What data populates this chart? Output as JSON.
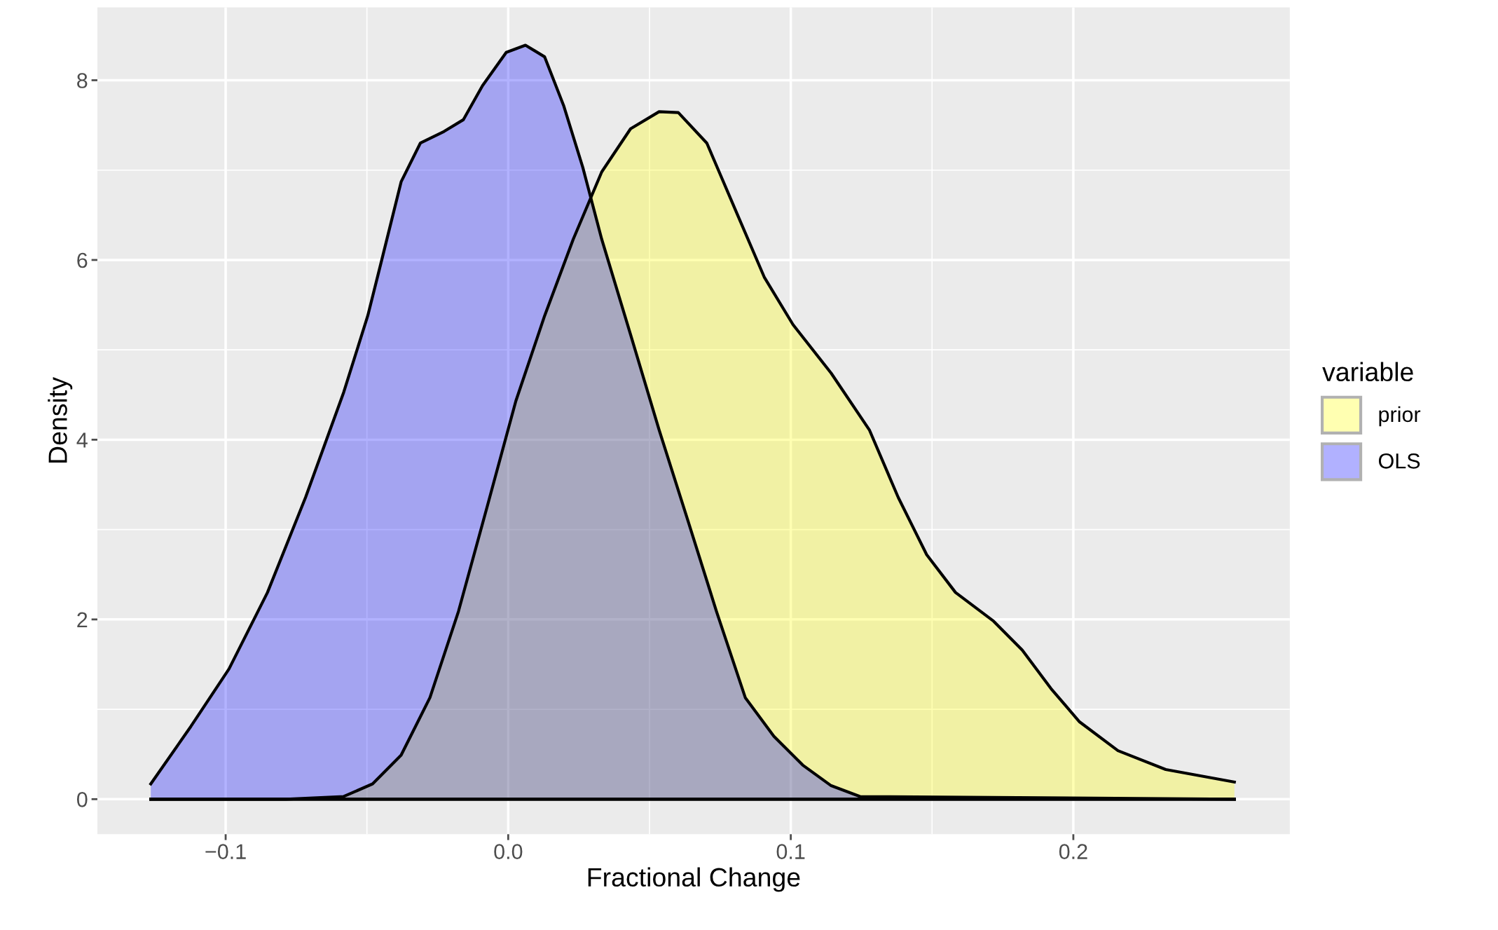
{
  "chart_data": {
    "type": "area",
    "xlabel": "Fractional Change",
    "ylabel": "Density",
    "legend_title": "variable",
    "legend": "right",
    "grid": true,
    "line_style": "solid",
    "xlim": [
      -0.1454,
      0.2766
    ],
    "ylim": [
      -0.39,
      8.81
    ],
    "xticks": [
      {
        "value": -0.1,
        "label": "−0.1"
      },
      {
        "value": 0.0,
        "label": "0.0"
      },
      {
        "value": 0.1,
        "label": "0.1"
      },
      {
        "value": 0.2,
        "label": "0.2"
      }
    ],
    "yticks": [
      0,
      2,
      4,
      6,
      8
    ],
    "series": [
      {
        "name": "prior",
        "color": "#ffff00",
        "x": [
          -0.1265,
          -0.0785,
          -0.0582,
          -0.048,
          -0.0379,
          -0.0277,
          -0.0176,
          -0.0074,
          0.0027,
          0.0129,
          0.023,
          0.0331,
          0.0433,
          0.0534,
          0.0602,
          0.0703,
          0.0805,
          0.0906,
          0.1008,
          0.1143,
          0.1278,
          0.138,
          0.1481,
          0.1583,
          0.1718,
          0.1819,
          0.1921,
          0.2022,
          0.2158,
          0.2327,
          0.257
        ],
        "values": [
          0,
          0,
          0.03,
          0.17,
          0.49,
          1.13,
          2.09,
          3.26,
          4.43,
          5.38,
          6.23,
          6.98,
          7.46,
          7.65,
          7.64,
          7.3,
          6.55,
          5.81,
          5.28,
          4.74,
          4.11,
          3.36,
          2.72,
          2.3,
          1.98,
          1.66,
          1.23,
          0.86,
          0.54,
          0.33,
          0.19
        ]
      },
      {
        "name": "OLS",
        "color": "#0000ff",
        "x": [
          -0.1265,
          -0.1123,
          -0.0988,
          -0.0852,
          -0.0717,
          -0.0582,
          -0.0497,
          -0.0446,
          -0.0379,
          -0.0311,
          -0.0227,
          -0.0159,
          -0.0091,
          -0.0007,
          0.0061,
          0.0129,
          0.0196,
          0.0264,
          0.0331,
          0.0433,
          0.0534,
          0.0636,
          0.0737,
          0.0839,
          0.094,
          0.1042,
          0.1143,
          0.1245,
          0.257
        ],
        "values": [
          0.17,
          0.81,
          1.45,
          2.3,
          3.36,
          4.53,
          5.38,
          6.02,
          6.87,
          7.3,
          7.43,
          7.56,
          7.94,
          8.31,
          8.39,
          8.26,
          7.72,
          7.03,
          6.23,
          5.17,
          4.11,
          3.1,
          2.09,
          1.13,
          0.7,
          0.38,
          0.15,
          0.03,
          0
        ]
      }
    ]
  }
}
